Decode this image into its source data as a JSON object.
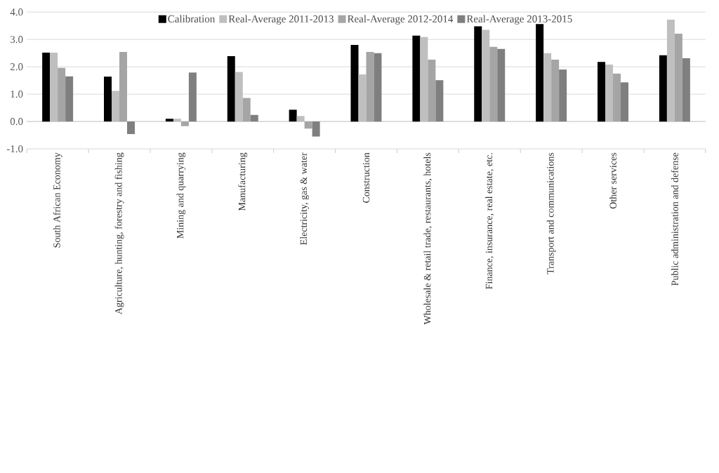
{
  "chart_data": {
    "type": "bar",
    "categories": [
      "South African Economy",
      "Agriculture, hunting, forestry and fishing",
      "Mining and quarrying",
      "Manufacturing",
      "Electricity, gas & water",
      "Construction",
      "Wholesale & retail trade, restaurants, hotels",
      "Finance, insurance, real estate, etc.",
      "Transport and communications",
      "Other services",
      "Public administration and defense"
    ],
    "series": [
      {
        "name": "Calibration",
        "color": "#000000",
        "values": [
          2.52,
          1.64,
          0.1,
          2.39,
          0.43,
          2.8,
          3.14,
          3.48,
          3.56,
          2.18,
          2.42
        ]
      },
      {
        "name": "Real-Average 2011-2013",
        "color": "#bfbfbf",
        "values": [
          2.52,
          1.12,
          0.1,
          1.81,
          0.2,
          1.72,
          3.09,
          3.35,
          2.5,
          2.08,
          3.72
        ]
      },
      {
        "name": "Real-Average 2012-2014",
        "color": "#a5a5a5",
        "values": [
          1.96,
          2.54,
          -0.17,
          0.86,
          -0.26,
          2.54,
          2.26,
          2.73,
          2.26,
          1.75,
          3.21
        ]
      },
      {
        "name": "Real-Average 2013-2015",
        "color": "#7f7f7f",
        "values": [
          1.65,
          -0.46,
          1.79,
          0.24,
          -0.55,
          2.5,
          1.51,
          2.65,
          1.9,
          1.43,
          2.31
        ]
      }
    ],
    "ylim": [
      -1,
      4
    ],
    "yticks": [
      {
        "value": -1,
        "label": "-1.0"
      },
      {
        "value": 0,
        "label": "0.0"
      },
      {
        "value": 1,
        "label": "1.0"
      },
      {
        "value": 2,
        "label": "2.0"
      },
      {
        "value": 3,
        "label": "3.0"
      },
      {
        "value": 4,
        "label": "4.0"
      }
    ],
    "grid": "y",
    "legend": "top"
  }
}
